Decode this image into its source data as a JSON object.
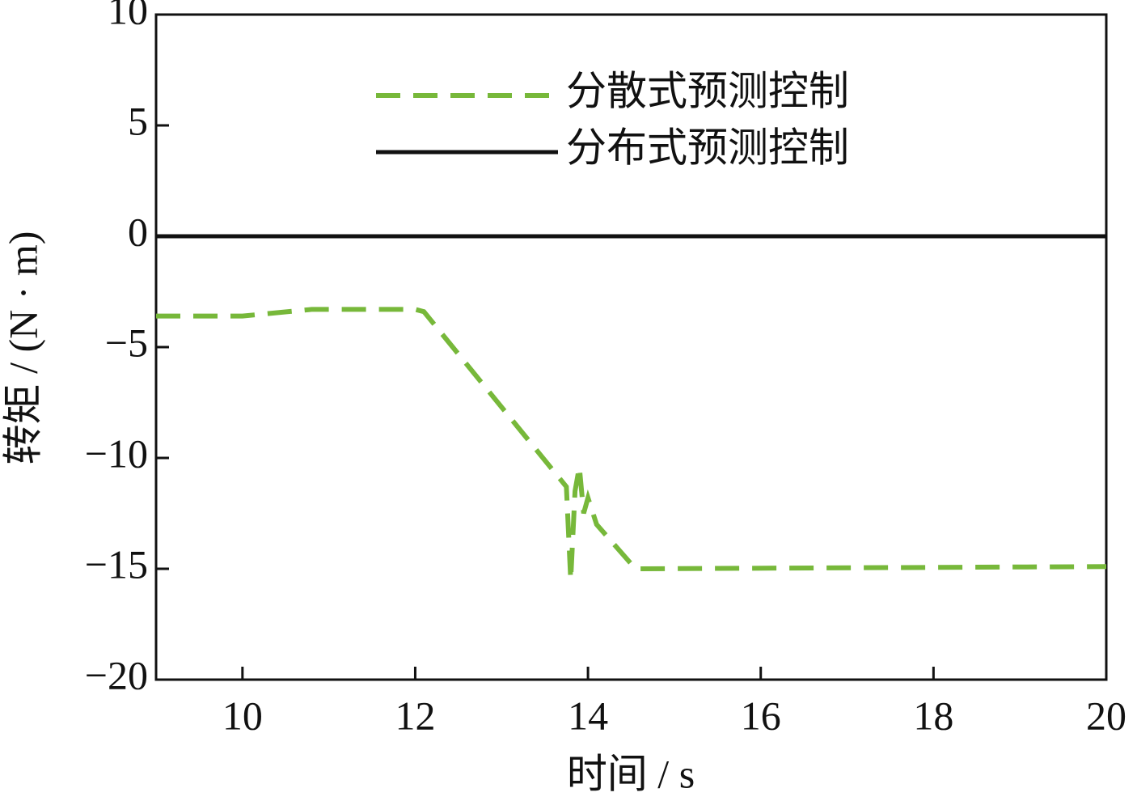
{
  "chart_data": {
    "type": "line",
    "xlabel": "时间 / s",
    "ylabel": "转矩 / (N · m)",
    "xlim": [
      9,
      20
    ],
    "ylim": [
      -20,
      10
    ],
    "xticks": [
      10,
      12,
      14,
      16,
      18,
      20
    ],
    "yticks": [
      10,
      5,
      0,
      {
        "value": -5,
        "label": "−5"
      },
      {
        "value": -10,
        "label": "−10"
      },
      {
        "value": -15,
        "label": "−15"
      },
      {
        "value": -20,
        "label": "−20"
      }
    ],
    "series": [
      {
        "name": "分散式预测控制",
        "color": "#77b83a",
        "dash": true,
        "x": [
          9,
          10,
          10.8,
          12,
          12.1,
          13.75,
          13.8,
          13.85,
          13.9,
          13.95,
          14.0,
          14.1,
          14.55,
          20
        ],
        "values": [
          -3.6,
          -3.6,
          -3.3,
          -3.3,
          -3.4,
          -11.3,
          -15.5,
          -11.5,
          -10.4,
          -12.5,
          -11.8,
          -13.0,
          -15.0,
          -14.9
        ]
      },
      {
        "name": "分布式预测控制",
        "color": "#111111",
        "dash": false,
        "x": [
          9,
          20
        ],
        "values": [
          0,
          0
        ]
      }
    ]
  }
}
